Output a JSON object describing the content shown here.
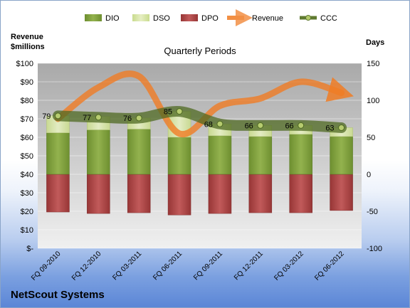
{
  "chart_data": {
    "type": "bar",
    "title": "Quarterly Periods",
    "company": "NetScout Systems",
    "left_axis_label": [
      "Revenue",
      "$millions"
    ],
    "right_axis_label": "Days",
    "left_ticks": [
      "$100",
      "$90",
      "$80",
      "$70",
      "$60",
      "$50",
      "$40",
      "$30",
      "$20",
      "$10",
      "$-"
    ],
    "right_ticks": [
      "150",
      "100",
      "50",
      "0",
      "-50",
      "-100"
    ],
    "ylim_right": [
      -100,
      150
    ],
    "ylim_left": [
      0,
      100
    ],
    "categories": [
      "FQ 09-2010",
      "FQ 12-2010",
      "FQ 03-2011",
      "FQ 06-2011",
      "FQ 09-2011",
      "FQ 12-2011",
      "FQ 03-2012",
      "FQ 06-2012"
    ],
    "legend": [
      "DIO",
      "DSO",
      "DPO",
      "Revenue",
      "CCC"
    ],
    "series": [
      {
        "name": "DIO",
        "values": [
          23,
          18,
          15,
          35,
          16,
          15,
          12,
          12
        ]
      },
      {
        "name": "DSO",
        "values": [
          56,
          60,
          61,
          50,
          52,
          51,
          54,
          51
        ]
      },
      {
        "name": "DPO",
        "values": [
          -51,
          -53,
          -52,
          -55,
          -53,
          -52,
          -52,
          -49
        ]
      },
      {
        "name": "Revenue",
        "values": [
          70,
          87,
          93,
          62,
          77,
          81,
          90,
          84
        ]
      },
      {
        "name": "CCC",
        "values": [
          79,
          77,
          76,
          85,
          68,
          66,
          66,
          63
        ]
      }
    ],
    "colors": {
      "DIO": "#7a9a3a",
      "DSO": "#d7e4a8",
      "DPO": "#a84040",
      "Revenue": "#f07c24",
      "CCC": "#5f7a30",
      "plot_bg_top": "#b5b5b5",
      "plot_bg_bottom": "#eeeeee"
    },
    "legend_position": "top",
    "grid": true
  }
}
